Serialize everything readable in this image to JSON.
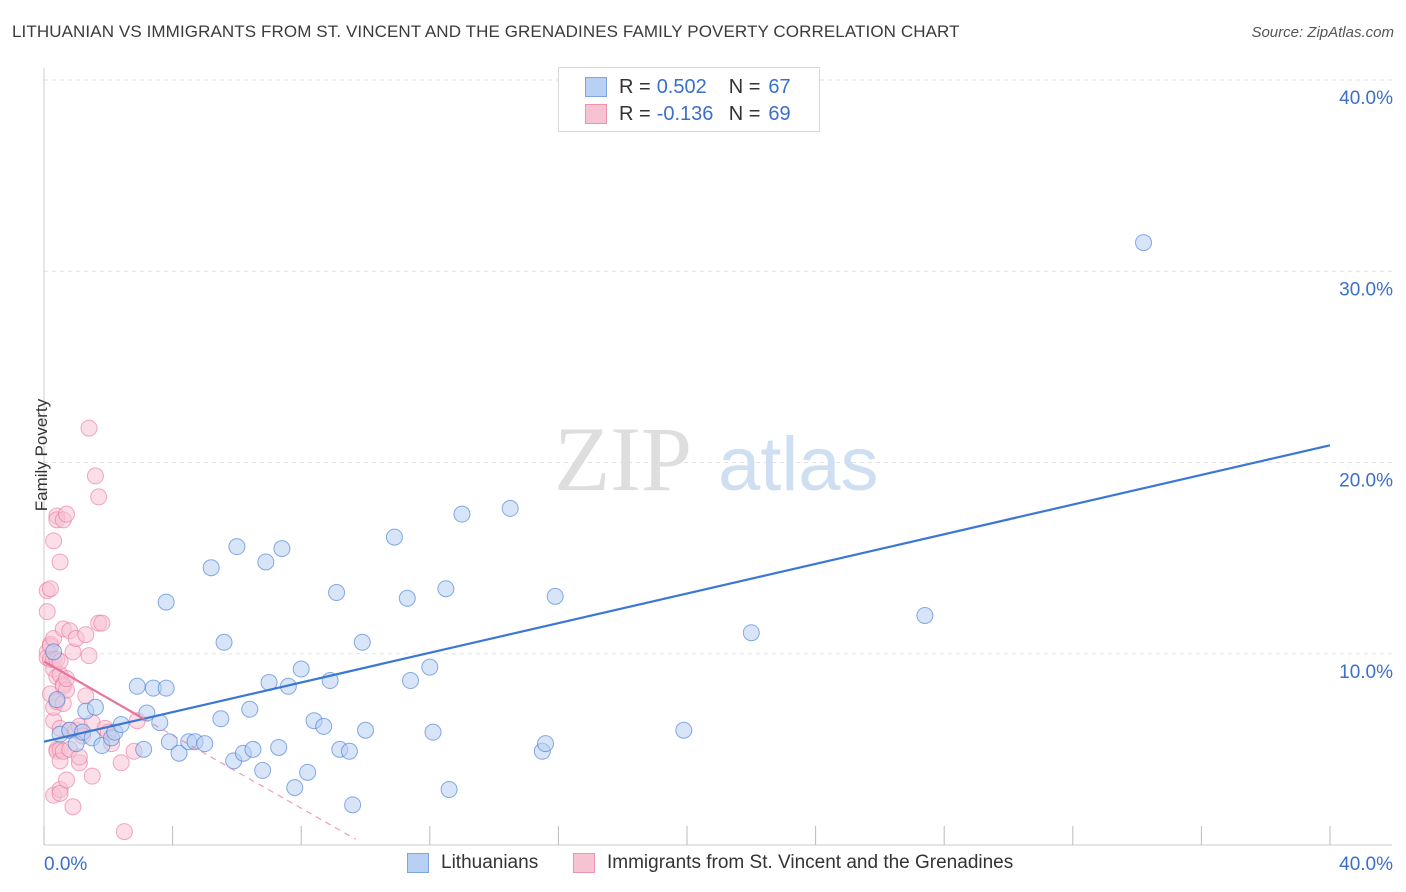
{
  "title": "LITHUANIAN VS IMMIGRANTS FROM ST. VINCENT AND THE GRENADINES FAMILY POVERTY CORRELATION CHART",
  "source": "Source: ZipAtlas.com",
  "watermark": {
    "zip": "ZIP",
    "atlas": "atlas"
  },
  "legend": {
    "rows": [
      {
        "r_label": "R =",
        "r_value": "0.502",
        "n_label": "N =",
        "n_value": "67"
      },
      {
        "r_label": "R =",
        "r_value": "-0.136",
        "n_label": "N =",
        "n_value": "69"
      }
    ]
  },
  "bottom_legend": {
    "series1": "Lithuanians",
    "series2": "Immigrants from St. Vincent and the Grenadines"
  },
  "colors": {
    "blue": "#3a78d4",
    "blue_fill": "#b8d0f3",
    "pink": "#e8739b",
    "pink_fill": "#f7c3d3",
    "tick_text": "#3a70c9"
  },
  "chart_data": {
    "type": "scatter",
    "xlabel": "",
    "ylabel": "Family Poverty",
    "xlim": [
      0,
      40
    ],
    "ylim": [
      0,
      40
    ],
    "x_tick_labels": [
      "0.0%",
      "40.0%"
    ],
    "y_tick_labels": [
      "10.0%",
      "20.0%",
      "30.0%",
      "40.0%"
    ],
    "y_ticks": [
      10,
      20,
      30,
      40
    ],
    "grid": true,
    "series": [
      {
        "name": "Lithuanians",
        "r": 0.502,
        "n": 67,
        "trend": {
          "x": [
            0,
            40
          ],
          "y": [
            5.4,
            20.9
          ]
        },
        "points": [
          [
            0.3,
            10.1
          ],
          [
            0.4,
            7.6
          ],
          [
            0.5,
            5.8
          ],
          [
            0.8,
            6.0
          ],
          [
            1.0,
            5.3
          ],
          [
            1.2,
            5.9
          ],
          [
            1.3,
            7.0
          ],
          [
            1.5,
            5.6
          ],
          [
            1.6,
            7.2
          ],
          [
            1.8,
            5.2
          ],
          [
            2.1,
            5.6
          ],
          [
            2.2,
            5.9
          ],
          [
            2.4,
            6.3
          ],
          [
            2.9,
            8.3
          ],
          [
            3.1,
            5.0
          ],
          [
            3.2,
            6.9
          ],
          [
            3.4,
            8.2
          ],
          [
            3.6,
            6.4
          ],
          [
            3.8,
            8.2
          ],
          [
            3.8,
            12.7
          ],
          [
            3.9,
            5.4
          ],
          [
            4.2,
            4.8
          ],
          [
            4.5,
            5.4
          ],
          [
            4.7,
            5.4
          ],
          [
            5.0,
            5.3
          ],
          [
            5.2,
            14.5
          ],
          [
            5.5,
            6.6
          ],
          [
            5.6,
            10.6
          ],
          [
            5.9,
            4.4
          ],
          [
            6.0,
            15.6
          ],
          [
            6.2,
            4.8
          ],
          [
            6.4,
            7.1
          ],
          [
            6.5,
            5.0
          ],
          [
            6.8,
            3.9
          ],
          [
            6.9,
            14.8
          ],
          [
            7.0,
            8.5
          ],
          [
            7.3,
            5.1
          ],
          [
            7.4,
            15.5
          ],
          [
            7.6,
            8.3
          ],
          [
            7.8,
            3.0
          ],
          [
            8.0,
            9.2
          ],
          [
            8.2,
            3.8
          ],
          [
            8.4,
            6.5
          ],
          [
            8.7,
            6.2
          ],
          [
            8.9,
            8.6
          ],
          [
            9.1,
            13.2
          ],
          [
            9.2,
            5.0
          ],
          [
            9.5,
            4.9
          ],
          [
            9.6,
            2.1
          ],
          [
            9.9,
            10.6
          ],
          [
            10.0,
            6.0
          ],
          [
            10.9,
            16.1
          ],
          [
            11.3,
            12.9
          ],
          [
            11.4,
            8.6
          ],
          [
            12.0,
            9.3
          ],
          [
            12.1,
            5.9
          ],
          [
            12.5,
            13.4
          ],
          [
            12.6,
            2.9
          ],
          [
            13.0,
            17.3
          ],
          [
            14.5,
            17.6
          ],
          [
            15.5,
            4.9
          ],
          [
            15.6,
            5.3
          ],
          [
            15.9,
            13.0
          ],
          [
            19.9,
            6.0
          ],
          [
            22.0,
            11.1
          ],
          [
            27.4,
            12.0
          ],
          [
            34.2,
            31.5
          ]
        ]
      },
      {
        "name": "Immigrants from St. Vincent and the Grenadines",
        "r": -0.136,
        "n": 69,
        "trend": {
          "x": [
            0,
            3.1
          ],
          "y": [
            9.6,
            6.6
          ]
        },
        "trend_dashed": {
          "x": [
            3.1,
            9.7
          ],
          "y": [
            6.6,
            0.3
          ]
        },
        "points": [
          [
            0.1,
            12.2
          ],
          [
            0.1,
            10.1
          ],
          [
            0.1,
            9.8
          ],
          [
            0.1,
            13.3
          ],
          [
            0.2,
            10.5
          ],
          [
            0.2,
            9.7
          ],
          [
            0.2,
            10.4
          ],
          [
            0.2,
            7.9
          ],
          [
            0.2,
            13.4
          ],
          [
            0.3,
            9.2
          ],
          [
            0.3,
            6.5
          ],
          [
            0.3,
            10.8
          ],
          [
            0.3,
            9.7
          ],
          [
            0.3,
            7.2
          ],
          [
            0.3,
            15.9
          ],
          [
            0.3,
            2.6
          ],
          [
            0.4,
            17.2
          ],
          [
            0.4,
            17.0
          ],
          [
            0.4,
            9.7
          ],
          [
            0.4,
            8.8
          ],
          [
            0.4,
            5.0
          ],
          [
            0.4,
            4.9
          ],
          [
            0.4,
            7.5
          ],
          [
            0.5,
            8.9
          ],
          [
            0.5,
            5.0
          ],
          [
            0.5,
            14.8
          ],
          [
            0.5,
            9.6
          ],
          [
            0.5,
            6.1
          ],
          [
            0.5,
            4.4
          ],
          [
            0.5,
            2.9
          ],
          [
            0.5,
            2.7
          ],
          [
            0.6,
            8.4
          ],
          [
            0.6,
            11.3
          ],
          [
            0.6,
            17.0
          ],
          [
            0.6,
            7.4
          ],
          [
            0.6,
            8.3
          ],
          [
            0.6,
            4.9
          ],
          [
            0.7,
            8.1
          ],
          [
            0.7,
            8.7
          ],
          [
            0.7,
            17.3
          ],
          [
            0.7,
            3.4
          ],
          [
            0.8,
            11.2
          ],
          [
            0.8,
            6.0
          ],
          [
            0.8,
            5.0
          ],
          [
            0.9,
            2.0
          ],
          [
            0.9,
            10.1
          ],
          [
            1.0,
            10.8
          ],
          [
            1.0,
            6.0
          ],
          [
            1.1,
            4.3
          ],
          [
            1.1,
            4.6
          ],
          [
            1.1,
            6.2
          ],
          [
            1.2,
            5.7
          ],
          [
            1.3,
            7.8
          ],
          [
            1.3,
            11.0
          ],
          [
            1.4,
            9.9
          ],
          [
            1.4,
            21.8
          ],
          [
            1.5,
            6.4
          ],
          [
            1.5,
            3.6
          ],
          [
            1.6,
            19.3
          ],
          [
            1.7,
            18.2
          ],
          [
            1.7,
            11.6
          ],
          [
            1.8,
            11.6
          ],
          [
            1.9,
            6.1
          ],
          [
            2.0,
            5.9
          ],
          [
            2.1,
            5.3
          ],
          [
            2.4,
            4.3
          ],
          [
            2.5,
            0.7
          ],
          [
            2.8,
            4.9
          ],
          [
            2.9,
            6.5
          ]
        ]
      }
    ]
  }
}
